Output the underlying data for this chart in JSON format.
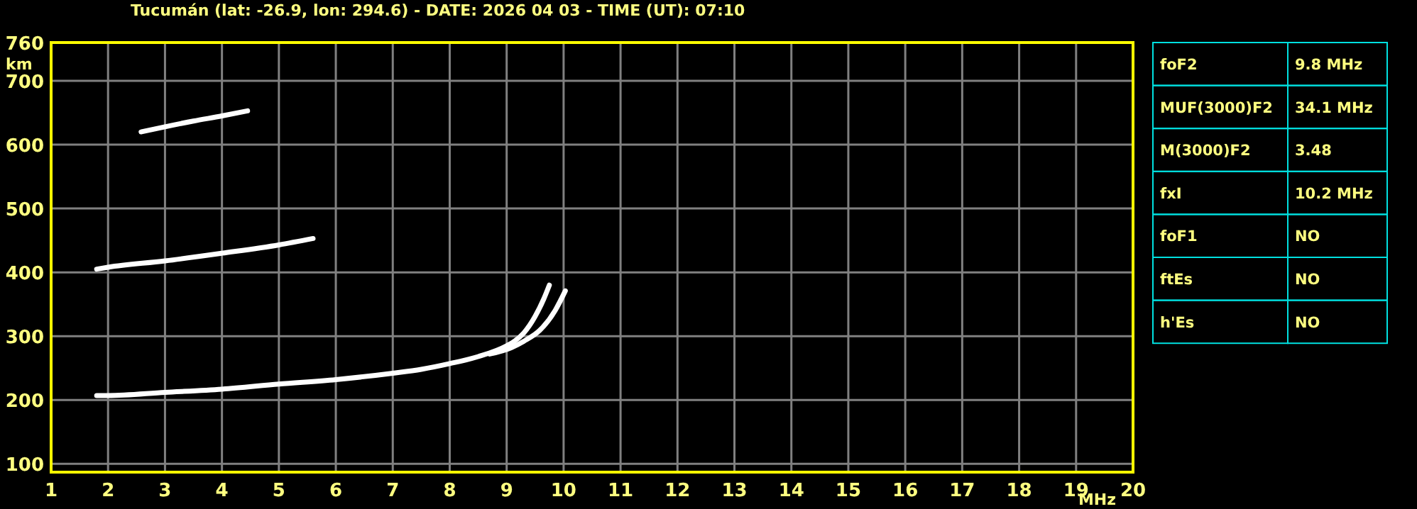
{
  "chart_data": [
    {
      "type": "line",
      "title": "Tucumán (lat: -26.9, lon: 294.6) - DATE: 2026 04 03 - TIME (UT): 07:10",
      "xlabel": "MHz",
      "ylabel": "km",
      "xlim": [
        1,
        20
      ],
      "ylim": [
        87,
        760
      ],
      "xticks": [
        1,
        2,
        3,
        4,
        5,
        6,
        7,
        8,
        9,
        10,
        11,
        12,
        13,
        14,
        15,
        16,
        17,
        18,
        19,
        20
      ],
      "yticks": [
        100,
        200,
        300,
        400,
        500,
        600,
        700,
        760
      ],
      "grid": true,
      "line_style": "solid",
      "marker": "none",
      "series": [
        {
          "color": "#ffffff",
          "x": [
            1.8,
            2,
            3,
            4,
            5,
            6,
            7,
            7.5,
            8,
            8.5,
            9,
            9.15,
            9.3,
            9.5,
            9.65,
            9.75
          ],
          "values": [
            207,
            207,
            212,
            217,
            225,
            232,
            242,
            248,
            257,
            268,
            285,
            293,
            305,
            331,
            358,
            380
          ]
        },
        {
          "color": "#ffffff",
          "x": [
            8.7,
            9.08,
            9.3,
            9.58,
            9.85,
            10.03
          ],
          "values": [
            272,
            282,
            292,
            309,
            340,
            371
          ]
        },
        {
          "color": "#ffffff",
          "x": [
            1.8,
            2,
            3,
            4,
            5,
            5.6
          ],
          "values": [
            405,
            408,
            418,
            430,
            443,
            453
          ]
        },
        {
          "color": "#ffffff",
          "x": [
            2.58,
            3,
            3.5,
            4,
            4.45
          ],
          "values": [
            620,
            628,
            637,
            645,
            653
          ]
        }
      ]
    },
    {
      "type": "other",
      "categories": [
        "foF2",
        "MUF(3000)F2",
        "M(3000)F2",
        "fxI",
        "foF1",
        "ftEs",
        "h'Es"
      ],
      "value_labels": [
        "9.8 MHz",
        "34.1 MHz",
        "3.48",
        "10.2 MHz",
        "NO",
        "NO",
        "NO"
      ]
    }
  ]
}
